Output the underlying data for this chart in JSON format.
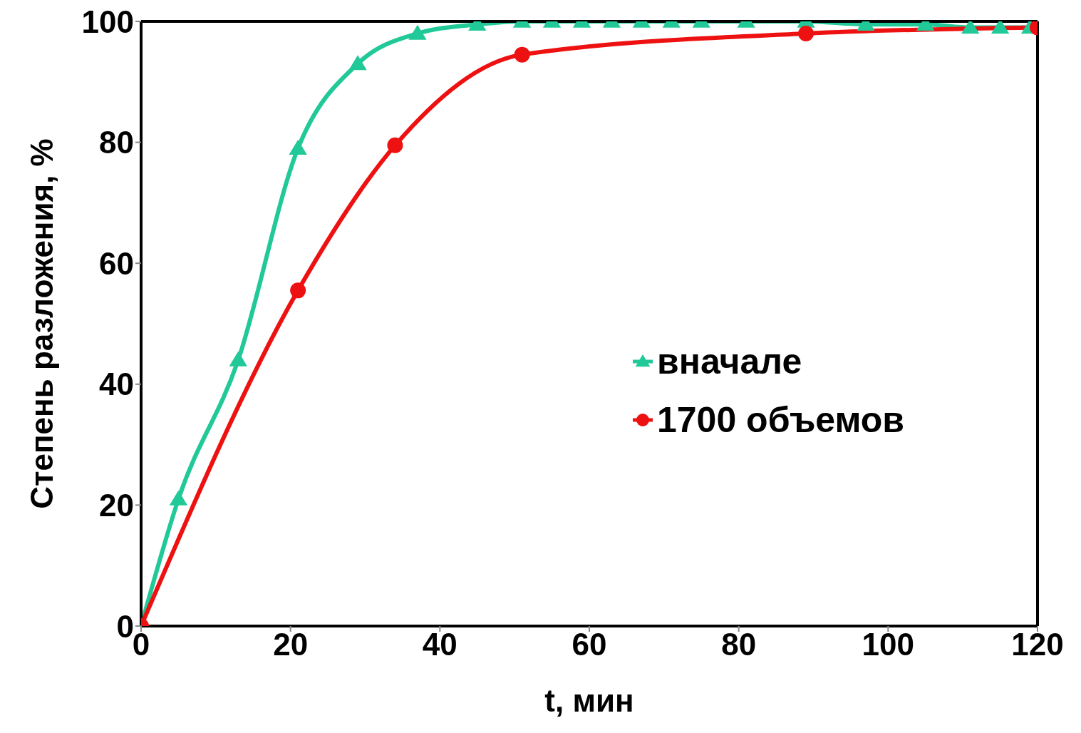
{
  "chart_data": {
    "type": "line",
    "xlabel": "t, мин",
    "ylabel": "Степень разложения, %",
    "xlim": [
      0,
      120
    ],
    "xticks": [
      0,
      20,
      40,
      60,
      80,
      100,
      120
    ],
    "ylim": [
      0,
      100
    ],
    "yticks": [
      0,
      20,
      40,
      60,
      80,
      100
    ],
    "legend": "right",
    "line_style": "solid",
    "series": [
      {
        "name": "вначале",
        "color": "#20c997",
        "marker": "triangle",
        "x": [
          0,
          5,
          13,
          21,
          29,
          37,
          45,
          51,
          55,
          59,
          63,
          67,
          71,
          75,
          81,
          89,
          97,
          105,
          111,
          115,
          119
        ],
        "values": [
          0,
          21,
          44,
          79,
          93,
          98,
          99.5,
          100,
          100,
          100,
          100,
          100,
          100,
          100,
          100,
          100,
          99.5,
          99.5,
          99,
          99,
          99
        ]
      },
      {
        "name": "1700 объемов",
        "color": "#ee1111",
        "marker": "circle",
        "x": [
          0,
          21,
          34,
          51,
          89,
          120
        ],
        "values": [
          0,
          55.5,
          79.5,
          94.5,
          98,
          99
        ]
      }
    ]
  }
}
